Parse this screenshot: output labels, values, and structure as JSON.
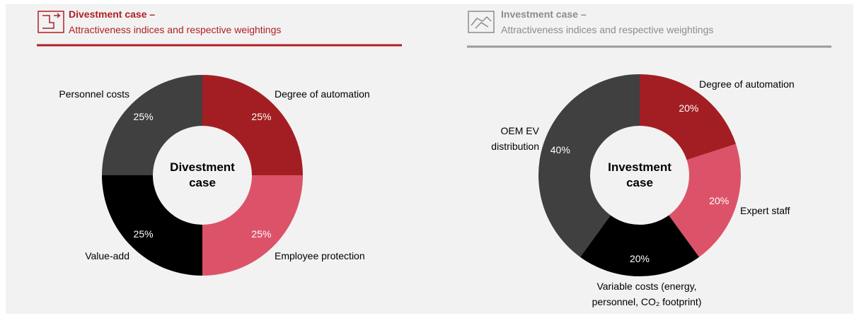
{
  "chart_data": [
    {
      "type": "pie",
      "donut": true,
      "title": "Divestment case –",
      "subtitle": "Attractiveness indices and respective weightings",
      "center_label": "Divestment case",
      "title_color": "#b01f24",
      "rule_color": "#b01f24",
      "categories": [
        "Degree of automation",
        "Employee protection",
        "Value-add",
        "Personnel costs"
      ],
      "values": [
        25,
        25,
        25,
        25
      ],
      "value_labels": [
        "25%",
        "25%",
        "25%",
        "25%"
      ],
      "colors": [
        "#a31e22",
        "#dc5369",
        "#000000",
        "#404040"
      ]
    },
    {
      "type": "pie",
      "donut": true,
      "title": "Investment case –",
      "subtitle": "Attractiveness indices and respective weightings",
      "center_label": "Investment case",
      "title_color": "#8c8c8c",
      "rule_color": "#9a9a9a",
      "categories": [
        "Degree of automation",
        "Expert staff",
        "Variable costs (energy, personnel, CO₂ footprint)",
        "OEM EV distribution"
      ],
      "values": [
        20,
        20,
        20,
        40
      ],
      "value_labels": [
        "20%",
        "20%",
        "20%",
        "40%"
      ],
      "colors": [
        "#a31e22",
        "#dc5369",
        "#000000",
        "#404040"
      ]
    }
  ]
}
